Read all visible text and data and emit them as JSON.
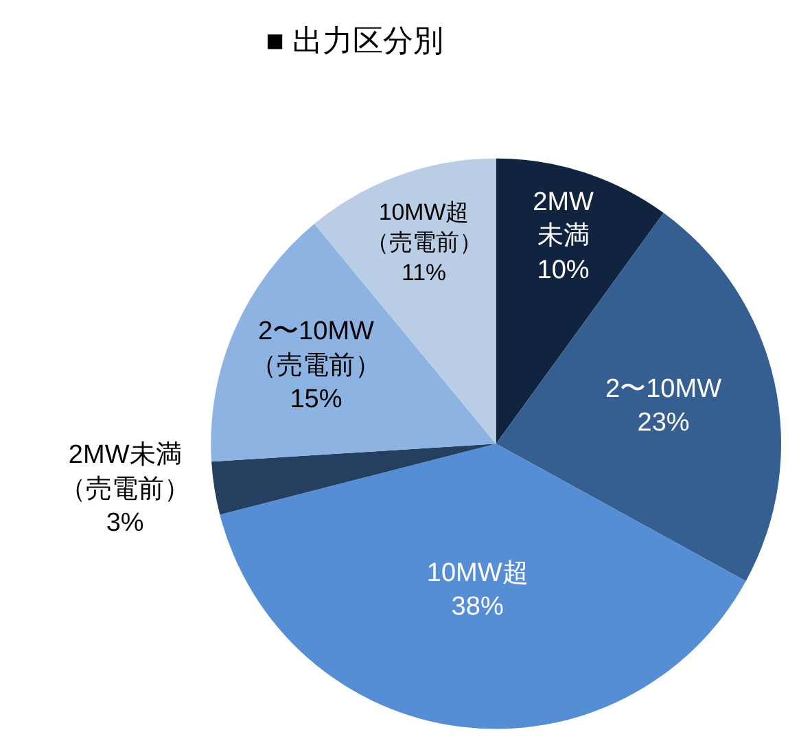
{
  "chart_data": {
    "type": "pie",
    "title": "■ 出力区分別",
    "categories": [
      "2MW\n未満",
      "2〜10MW",
      "10MW超",
      "2MW未満（売電前）",
      "2〜10MW（売電前）",
      "10MW超（売電前）"
    ],
    "values": [
      10,
      23,
      38,
      3,
      15,
      11
    ],
    "value_labels": [
      "10%",
      "23%",
      "38%",
      "3%",
      "15%",
      "11%"
    ],
    "colors": [
      "#10243f",
      "#355f91",
      "#558ed5",
      "#243f60",
      "#8db3e2",
      "#b9cde5"
    ],
    "legend": false
  }
}
